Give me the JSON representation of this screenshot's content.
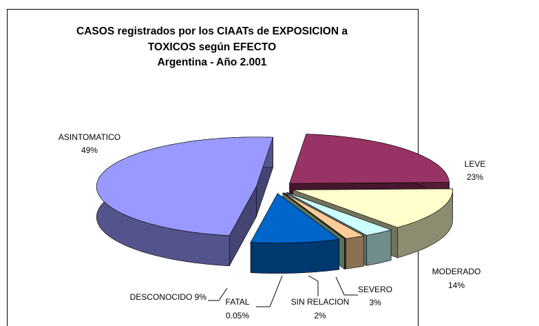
{
  "chart_data": {
    "type": "pie3d",
    "title": "CASOS registrados por los CIAATs de EXPOSICION a TOXICOS según EFECTO",
    "subtitle": "Argentina - Año 2.001",
    "categories": [
      "LEVE",
      "MODERADO",
      "SEVERO",
      "SIN RELACION",
      "FATAL",
      "DESCONOCIDO",
      "ASINTOMATICO"
    ],
    "values": [
      23,
      14,
      3,
      2,
      0.05,
      9,
      49
    ],
    "value_labels": [
      "23%",
      "14%",
      "3%",
      "2%",
      "0.05%",
      "9%",
      "49%"
    ],
    "colors": [
      "#993366",
      "#ffffcc",
      "#ccffff",
      "#ffcc99",
      "#ccffcc",
      "#0066cc",
      "#9999ff"
    ]
  }
}
